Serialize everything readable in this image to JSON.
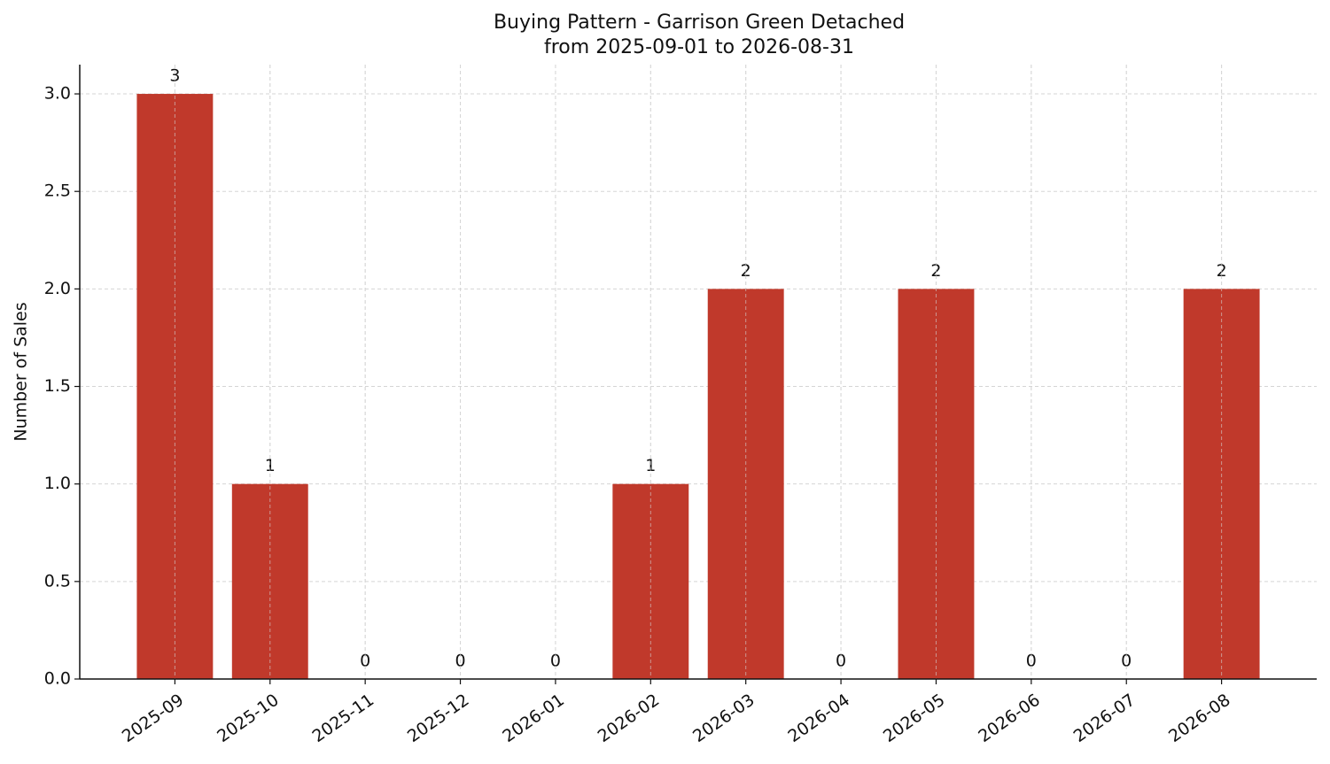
{
  "chart_data": {
    "type": "bar",
    "title": "Buying Pattern - Garrison Green Detached",
    "subtitle": "from 2025-09-01 to 2026-08-31",
    "y_label": "Number of Sales",
    "categories": [
      "2025-09",
      "2025-10",
      "2025-11",
      "2025-12",
      "2026-01",
      "2026-02",
      "2026-03",
      "2026-04",
      "2026-05",
      "2026-06",
      "2026-07",
      "2026-08"
    ],
    "values": [
      3,
      1,
      0,
      0,
      0,
      1,
      2,
      0,
      2,
      0,
      0,
      2
    ],
    "color": "#c0392b",
    "ylim": [
      0,
      3.15
    ],
    "yticks": [
      {
        "value": 0,
        "label": "0.0"
      },
      {
        "value": 0.5,
        "label": "0.5"
      },
      {
        "value": 1,
        "label": "1.0"
      },
      {
        "value": 1.5,
        "label": "1.5"
      },
      {
        "value": 2,
        "label": "2.0"
      },
      {
        "value": 2.5,
        "label": "2.5"
      },
      {
        "value": 3,
        "label": "3.0"
      }
    ],
    "grid": true
  }
}
